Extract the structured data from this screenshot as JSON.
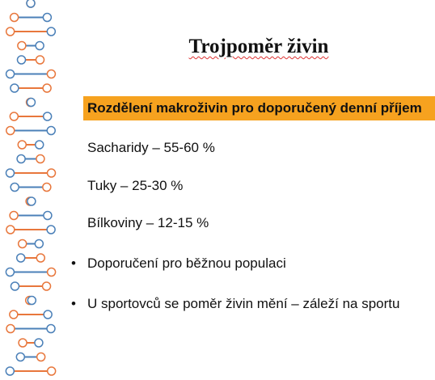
{
  "slide": {
    "title": "Trojpoměr živin",
    "heading": "Rozdělení makroživin pro doporučený denní příjem",
    "items": [
      "Sacharidy – 55-60 %",
      "Tuky – 25-30 %",
      "Bílkoviny – 12-15 %"
    ],
    "bullets": [
      "Doporučení pro běžnou populaci",
      "U sportovců se poměr živin mění – záleží na sportu"
    ]
  }
}
